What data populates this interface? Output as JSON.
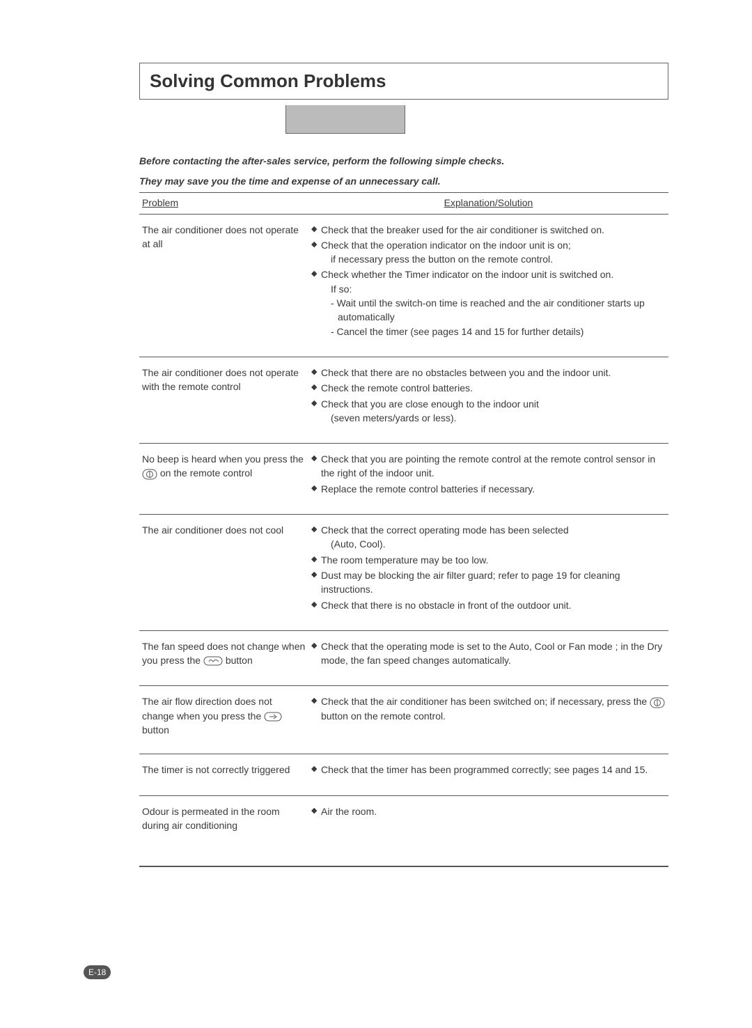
{
  "title": "Solving Common Problems",
  "intro_line1": "Before contacting the after-sales service, perform the following simple checks.",
  "intro_line2": "They may save you the time and expense of an unnecessary call.",
  "headers": {
    "problem": "Problem",
    "solution": "Explanation/Solution"
  },
  "rows": [
    {
      "problem": "The air conditioner does not operate at all",
      "solutions": [
        {
          "text": "Check that the breaker used for the air conditioner is switched on."
        },
        {
          "text": "Check that the operation indicator on the indoor unit is on;",
          "sub": [
            "if necessary press the button on the remote control."
          ]
        },
        {
          "text": "Check whether the Timer indicator on the indoor unit is switched on.",
          "sub": [
            "If so:",
            "- Wait until the switch-on time is reached and the air conditioner starts up automatically",
            "- Cancel the timer (see pages 14 and 15 for further details)"
          ]
        }
      ]
    },
    {
      "problem": "The air conditioner does not operate with the remote control",
      "solutions": [
        {
          "text": "Check that there are no obstacles between you and the indoor unit."
        },
        {
          "text": "Check the remote control batteries."
        },
        {
          "text": "Check that you are close enough to the indoor unit",
          "sub": [
            "(seven meters/yards or less)."
          ]
        }
      ]
    },
    {
      "problem_html": "No beep is heard when you press the <svg class='icon-btn' width='22' height='16'><rect x='1' y='1' width='20' height='14' rx='7' ry='7' fill='none' stroke='#555'/><circle cx='11' cy='8' r='4.5' fill='none' stroke='#555'/><line x1='11' y1='4' x2='11' y2='12' stroke='#555'/></svg> on the remote control",
      "solutions": [
        {
          "text": "Check that you are pointing the remote control at the remote control sensor in the right of the indoor unit."
        },
        {
          "text": "Replace the remote control batteries if necessary."
        }
      ]
    },
    {
      "problem": "The air conditioner does not cool",
      "solutions": [
        {
          "text": "Check that the correct operating mode has been selected",
          "sub": [
            "(Auto, Cool)."
          ]
        },
        {
          "text": "The room temperature may be too low."
        },
        {
          "text": "Dust may be blocking the air filter guard; refer to page 19 for cleaning instructions."
        },
        {
          "text": "Check that there is no obstacle in front of the outdoor unit."
        }
      ]
    },
    {
      "problem_html": "The fan speed does not change when you press the <svg class='icon-btn' width='28' height='14'><rect x='1' y='1' width='26' height='12' rx='6' ry='6' fill='none' stroke='#555'/><path d='M8 8 Q10 3 14 8 Q18 3 22 8' fill='none' stroke='#555'/></svg> button",
      "solutions": [
        {
          "text": "Check that the operating mode is set to the Auto, Cool or Fan mode ; in the Dry mode, the fan speed changes automatically."
        }
      ]
    },
    {
      "problem_html": "The air flow direction does not change when you press the <svg class='icon-btn' width='26' height='14'><rect x='1' y='1' width='24' height='12' rx='6' ry='6' fill='none' stroke='#555'/><path d='M8 7 L16 7 M14 4 L18 7 L14 10' fill='none' stroke='#555'/></svg> button",
      "solutions": [
        {
          "text_html": "Check that the air conditioner has been switched on; if necessary, press the <svg class='icon-btn' width='22' height='16'><rect x='1' y='1' width='20' height='14' rx='7' ry='7' fill='none' stroke='#555'/><circle cx='11' cy='8' r='4.5' fill='none' stroke='#555'/><line x1='11' y1='4' x2='11' y2='12' stroke='#555'/></svg> button on the remote control."
        }
      ]
    },
    {
      "problem": "The timer is not correctly triggered",
      "solutions": [
        {
          "text": "Check that the timer has been programmed correctly; see pages 14 and 15."
        }
      ]
    },
    {
      "problem": "Odour is permeated in the room during air conditioning",
      "solutions": [
        {
          "text": "Air the room."
        }
      ]
    }
  ],
  "page_number": "E-18"
}
